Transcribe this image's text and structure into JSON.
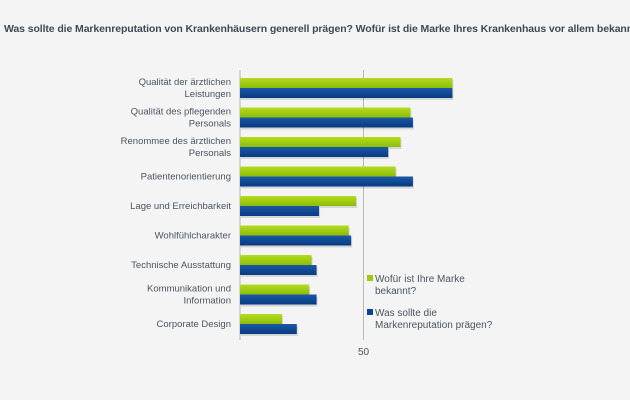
{
  "chart_data": {
    "type": "bar",
    "orientation": "horizontal",
    "title": "Was sollte die Markenreputation von Krankenhäusern generell prägen?  Wofür ist die Marke Ihres Krankenhaus vor allem bekannt?",
    "xlabel": "",
    "ylabel": "",
    "xlim": [
      0,
      100
    ],
    "xticks": [
      50
    ],
    "grid": true,
    "legend_position": "right",
    "categories": [
      [
        "Qualität der ärztlichen",
        "Leistungen"
      ],
      [
        "Qualität des pflegenden",
        "Personals"
      ],
      [
        "Renommee des ärztlichen",
        "Personals"
      ],
      [
        "Patientenorientierung"
      ],
      [
        "Lage und Erreichbarkeit"
      ],
      [
        "Wohlfühlcharakter"
      ],
      [
        "Technische Ausstattung"
      ],
      [
        "Kommunikation und",
        "Information"
      ],
      [
        "Corporate Design"
      ]
    ],
    "series": [
      {
        "name": [
          "Wofür ist Ihre Marke",
          "bekannt?"
        ],
        "color": "#9ccb0c",
        "values": [
          86,
          69,
          65,
          63,
          47,
          44,
          29,
          28,
          17
        ]
      },
      {
        "name": [
          "Was sollte die",
          "Markenreputation prägen?"
        ],
        "color": "#0b4592",
        "values": [
          86,
          70,
          60,
          70,
          32,
          45,
          31,
          31,
          23
        ]
      }
    ]
  }
}
